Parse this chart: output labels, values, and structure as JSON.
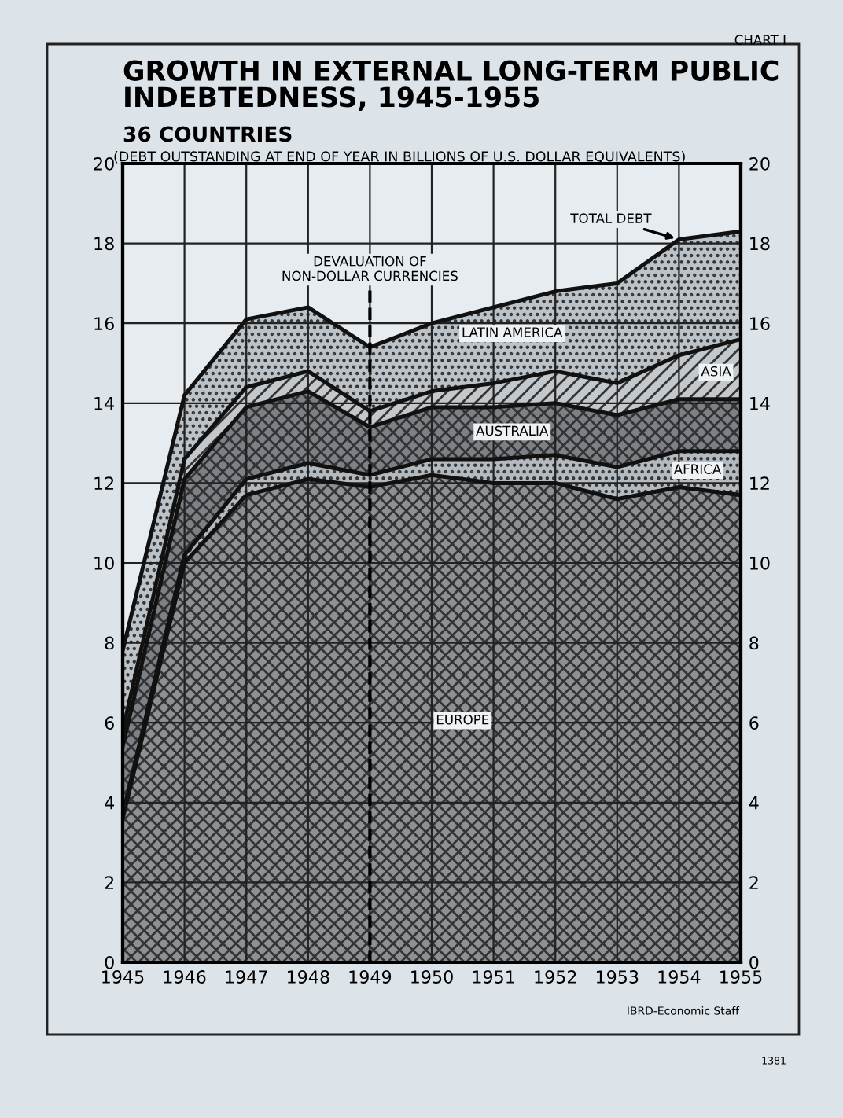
{
  "chart_data": {
    "type": "area",
    "stacked": true,
    "title": "GROWTH IN EXTERNAL LONG-TERM PUBLIC\nINDEBTEDNESS, 1945-1955",
    "subtitle": "36 COUNTRIES",
    "x": [
      1945,
      1946,
      1947,
      1948,
      1949,
      1950,
      1951,
      1952,
      1953,
      1954,
      1955
    ],
    "series": [
      {
        "name": "EUROPE",
        "color": "#8c9196",
        "values": [
          3.6,
          10.0,
          11.7,
          12.1,
          11.9,
          12.2,
          12.0,
          12.0,
          11.6,
          11.9,
          11.7
        ]
      },
      {
        "name": "AFRICA",
        "color": "#b4bbc0",
        "values": [
          0.1,
          0.2,
          0.4,
          0.4,
          0.3,
          0.4,
          0.6,
          0.7,
          0.8,
          0.9,
          1.1
        ]
      },
      {
        "name": "AUSTRALIA",
        "color": "#7b8186",
        "values": [
          1.7,
          1.9,
          1.8,
          1.8,
          1.2,
          1.3,
          1.3,
          1.3,
          1.3,
          1.3,
          1.3
        ]
      },
      {
        "name": "ASIA",
        "color": "#c2c8cc",
        "values": [
          0.4,
          0.5,
          0.5,
          0.5,
          0.4,
          0.4,
          0.6,
          0.8,
          0.8,
          1.1,
          1.5
        ]
      },
      {
        "name": "LATIN AMERICA",
        "color": "#bcc3c8",
        "values": [
          2.0,
          1.6,
          1.7,
          1.6,
          1.6,
          1.7,
          1.9,
          2.0,
          2.5,
          2.9,
          2.7
        ]
      }
    ],
    "xlim": [
      1945,
      1955
    ],
    "xticks": [
      1945,
      1946,
      1947,
      1948,
      1949,
      1950,
      1951,
      1952,
      1953,
      1954,
      1955
    ],
    "ylim": [
      0,
      20
    ],
    "yticks": [
      0,
      2,
      4,
      6,
      8,
      10,
      12,
      14,
      16,
      18,
      20
    ],
    "y2lim": [
      0,
      20
    ],
    "y2ticks": [
      0,
      2,
      4,
      6,
      8,
      10,
      12,
      14,
      16,
      18,
      20
    ],
    "grid": true,
    "ref_lines": [
      {
        "axis": "x",
        "value": 1949,
        "label": "DEVALUATION OF\nNON-DOLLAR CURRENCIES",
        "color": "#000000",
        "line_style": "dashed"
      }
    ],
    "annotations": [
      {
        "text": "TOTAL DEBT",
        "x": 1954,
        "y": 18.1
      },
      "CHART I",
      "(DEBT OUTSTANDING AT END OF YEAR IN BILLIONS OF U.S. DOLLAR EQUIVALENTS)",
      "IBRD-Economic Staff",
      "1381"
    ]
  }
}
